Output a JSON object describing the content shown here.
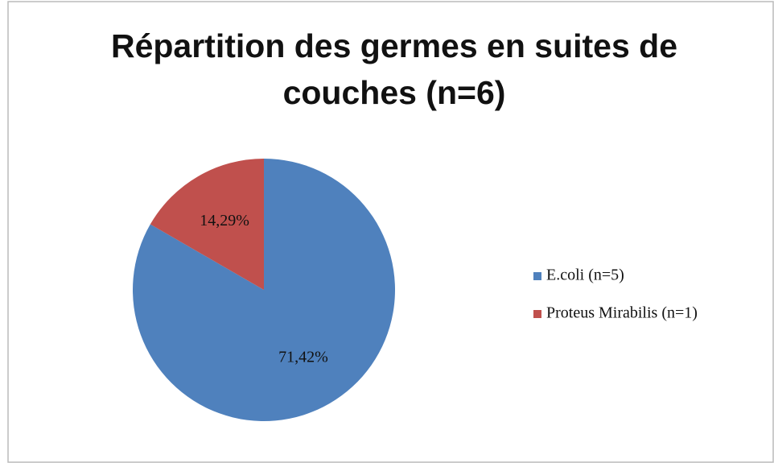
{
  "chart_data": {
    "type": "pie",
    "title": "Répartition des germes en suites de couches (n=6)",
    "categories": [
      "E.coli (n=5)",
      "Proteus Mirabilis (n=1)"
    ],
    "values": [
      71.42,
      14.29
    ],
    "value_labels": [
      "71,42%",
      "14,29%"
    ],
    "colors": [
      "#4f81bd",
      "#c0504d"
    ],
    "legend": "right"
  }
}
